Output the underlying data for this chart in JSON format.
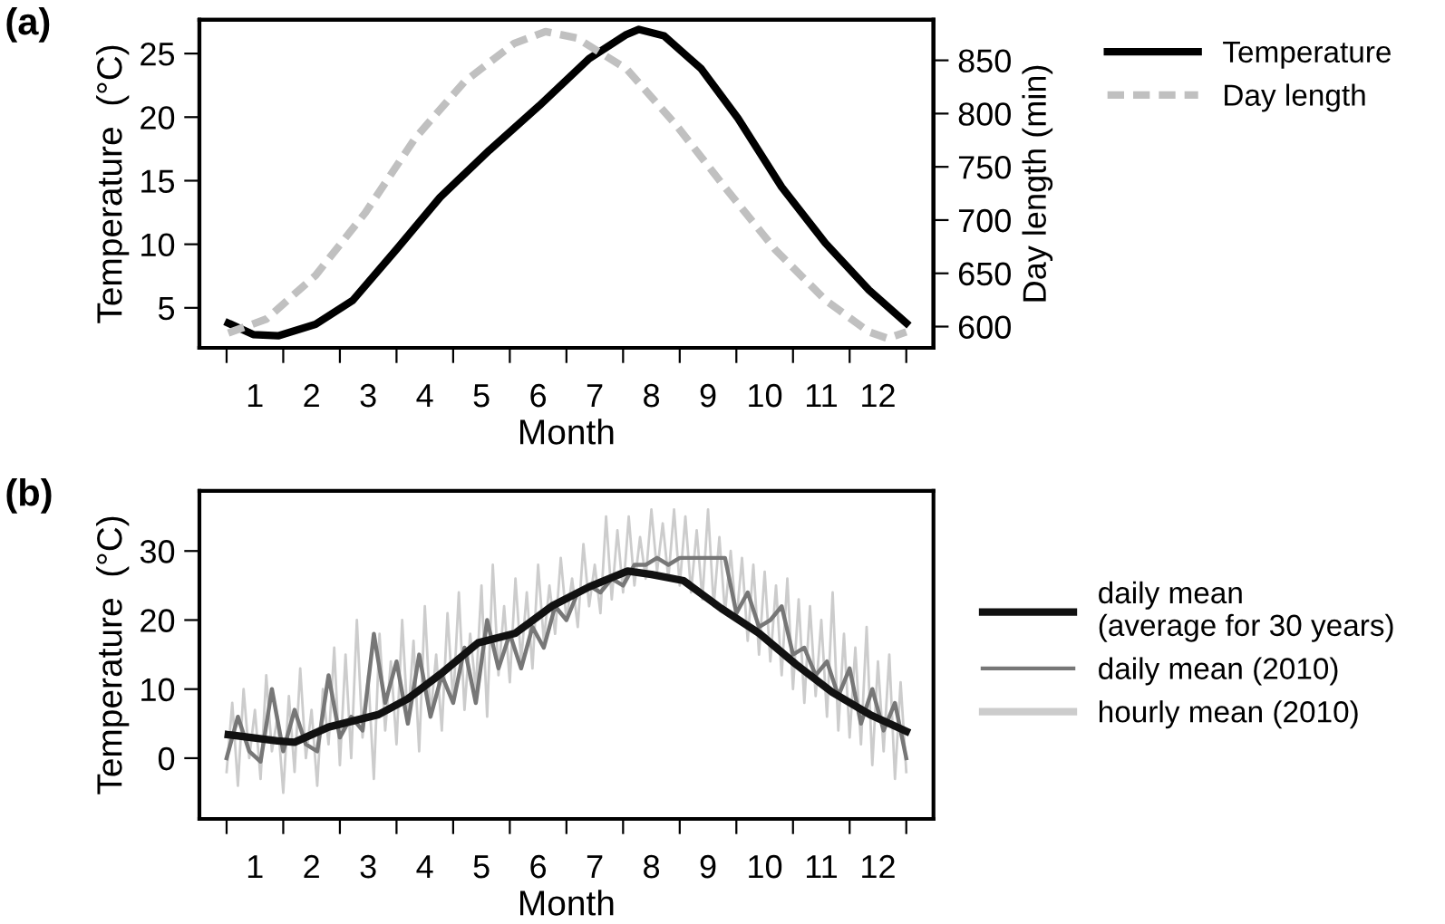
{
  "chart_data": [
    {
      "type": "line",
      "title": "(a)",
      "xlabel": "Month",
      "ylabel": "Temperature  (°C)",
      "y2label": "Day length (min)",
      "xlim": [
        -0.48,
        12.48
      ],
      "ylim": [
        1.85,
        27.65
      ],
      "yticks": [
        5,
        10,
        15,
        20,
        25
      ],
      "y2lim": [
        580,
        888
      ],
      "y2ticks": [
        600,
        650,
        700,
        750,
        800,
        850
      ],
      "xticks": [
        {
          "value": 0,
          "label": null
        },
        {
          "value": 1,
          "label": null
        },
        {
          "value": 2,
          "label": null
        },
        {
          "value": 3,
          "label": null
        },
        {
          "value": 4,
          "label": null
        },
        {
          "value": 5,
          "label": null
        },
        {
          "value": 6,
          "label": null
        },
        {
          "value": 7,
          "label": null
        },
        {
          "value": 8,
          "label": null
        },
        {
          "value": 9,
          "label": null
        },
        {
          "value": 10,
          "label": null
        },
        {
          "value": 11,
          "label": null
        },
        {
          "value": 12,
          "label": null
        },
        {
          "value": 0.5,
          "label": "1"
        },
        {
          "value": 1.5,
          "label": "2"
        },
        {
          "value": 2.5,
          "label": "3"
        },
        {
          "value": 3.5,
          "label": "4"
        },
        {
          "value": 4.5,
          "label": "5"
        },
        {
          "value": 5.5,
          "label": "6"
        },
        {
          "value": 6.5,
          "label": "7"
        },
        {
          "value": 7.5,
          "label": "8"
        },
        {
          "value": 8.5,
          "label": "9"
        },
        {
          "value": 9.5,
          "label": "10"
        },
        {
          "value": 10.5,
          "label": "11"
        },
        {
          "value": 11.5,
          "label": "12"
        }
      ],
      "grid": false,
      "legend": "top right",
      "series": [
        {
          "name": "Temperature",
          "color": "#000000",
          "line_style": "solid",
          "x": [
            0.03,
            0.47,
            0.91,
            1.57,
            2.23,
            3.0,
            3.77,
            4.64,
            5.52,
            6.4,
            7.06,
            7.28,
            7.72,
            8.38,
            9.03,
            9.8,
            10.57,
            11.34,
            12.0
          ],
          "values": [
            3.8,
            2.9,
            2.8,
            3.7,
            5.6,
            9.6,
            13.7,
            17.4,
            20.9,
            24.6,
            26.5,
            26.9,
            26.4,
            23.8,
            19.9,
            14.5,
            10.1,
            6.4,
            3.8
          ]
        },
        {
          "name": "Day length",
          "color": "#c0c0c0",
          "line_style": "dashed",
          "axis": "y2",
          "x": [
            0.03,
            0.7,
            1.57,
            2.45,
            3.33,
            4.2,
            5.08,
            5.63,
            6.18,
            7.06,
            7.94,
            8.81,
            9.69,
            10.57,
            11.34,
            11.67,
            12.0
          ],
          "values": [
            594,
            607,
            648,
            707,
            777,
            830,
            866,
            877,
            871,
            842,
            789,
            730,
            672,
            625,
            595,
            589,
            595
          ]
        }
      ]
    },
    {
      "type": "line",
      "title": "(b)",
      "xlabel": "Month",
      "ylabel": "Temperature  (°C)",
      "xlim": [
        -0.48,
        12.48
      ],
      "ylim": [
        -8.8,
        38.7
      ],
      "yticks": [
        0,
        10,
        20,
        30
      ],
      "xticks": [
        {
          "value": 0,
          "label": null
        },
        {
          "value": 1,
          "label": null
        },
        {
          "value": 2,
          "label": null
        },
        {
          "value": 3,
          "label": null
        },
        {
          "value": 4,
          "label": null
        },
        {
          "value": 5,
          "label": null
        },
        {
          "value": 6,
          "label": null
        },
        {
          "value": 7,
          "label": null
        },
        {
          "value": 8,
          "label": null
        },
        {
          "value": 9,
          "label": null
        },
        {
          "value": 10,
          "label": null
        },
        {
          "value": 11,
          "label": null
        },
        {
          "value": 12,
          "label": null
        },
        {
          "value": 0.5,
          "label": "1"
        },
        {
          "value": 1.5,
          "label": "2"
        },
        {
          "value": 2.5,
          "label": "3"
        },
        {
          "value": 3.5,
          "label": "4"
        },
        {
          "value": 4.5,
          "label": "5"
        },
        {
          "value": 5.5,
          "label": "6"
        },
        {
          "value": 6.5,
          "label": "7"
        },
        {
          "value": 7.5,
          "label": "8"
        },
        {
          "value": 8.5,
          "label": "9"
        },
        {
          "value": 9.5,
          "label": "10"
        },
        {
          "value": 10.5,
          "label": "11"
        },
        {
          "value": 11.5,
          "label": "12"
        }
      ],
      "grid": false,
      "legend": "right",
      "series": [
        {
          "name": "hourly mean (2010)",
          "color": "#cccccc",
          "line_style": "solid",
          "x": [
            0.0,
            0.1,
            0.2,
            0.3,
            0.4,
            0.5,
            0.6,
            0.7,
            0.8,
            0.9,
            1.0,
            1.1,
            1.2,
            1.3,
            1.4,
            1.5,
            1.6,
            1.7,
            1.8,
            1.9,
            2.0,
            2.1,
            2.2,
            2.3,
            2.4,
            2.5,
            2.6,
            2.7,
            2.8,
            2.9,
            3.0,
            3.1,
            3.2,
            3.3,
            3.4,
            3.5,
            3.6,
            3.7,
            3.8,
            3.9,
            4.0,
            4.1,
            4.2,
            4.3,
            4.4,
            4.5,
            4.6,
            4.7,
            4.8,
            4.9,
            5.0,
            5.1,
            5.2,
            5.3,
            5.4,
            5.5,
            5.6,
            5.7,
            5.8,
            5.9,
            6.0,
            6.1,
            6.2,
            6.3,
            6.4,
            6.5,
            6.6,
            6.7,
            6.8,
            6.9,
            7.0,
            7.1,
            7.2,
            7.3,
            7.4,
            7.5,
            7.6,
            7.7,
            7.8,
            7.9,
            8.0,
            8.1,
            8.2,
            8.3,
            8.4,
            8.5,
            8.6,
            8.7,
            8.8,
            8.9,
            9.0,
            9.1,
            9.2,
            9.3,
            9.4,
            9.5,
            9.6,
            9.7,
            9.8,
            9.9,
            10.0,
            10.1,
            10.2,
            10.3,
            10.4,
            10.5,
            10.6,
            10.7,
            10.8,
            10.9,
            11.0,
            11.1,
            11.2,
            11.3,
            11.4,
            11.5,
            11.6,
            11.7,
            11.8,
            11.9,
            12.0
          ],
          "values": [
            -2,
            8,
            -4,
            10,
            0,
            7,
            -3,
            12,
            1,
            6,
            -5,
            9,
            -2,
            13,
            0,
            7,
            -4,
            10,
            2,
            16,
            -1,
            15,
            0,
            20,
            3,
            12,
            -3,
            18,
            4,
            14,
            2,
            20,
            5,
            17,
            1,
            22,
            6,
            15,
            4,
            21,
            8,
            24,
            7,
            18,
            10,
            25,
            6,
            28,
            12,
            22,
            11,
            26,
            14,
            24,
            13,
            28,
            17,
            25,
            18,
            29,
            20,
            26,
            19,
            31,
            22,
            28,
            21,
            35,
            23,
            33,
            24,
            35,
            25,
            32,
            26,
            36,
            27,
            34,
            26,
            36,
            25,
            35,
            24,
            33,
            23,
            36,
            22,
            32,
            21,
            30,
            20,
            29,
            17,
            28,
            15,
            27,
            14,
            25,
            12,
            26,
            10,
            23,
            8,
            22,
            9,
            20,
            6,
            24,
            4,
            18,
            3,
            16,
            2,
            19,
            -1,
            14,
            1,
            15,
            -3,
            11,
            -2
          ]
        },
        {
          "name": "daily mean (2010)",
          "color": "#777777",
          "line_style": "solid",
          "x": [
            0.0,
            0.2,
            0.4,
            0.6,
            0.8,
            1.0,
            1.2,
            1.4,
            1.6,
            1.8,
            2.0,
            2.2,
            2.4,
            2.6,
            2.8,
            3.0,
            3.2,
            3.4,
            3.6,
            3.8,
            4.0,
            4.2,
            4.4,
            4.6,
            4.8,
            5.0,
            5.2,
            5.4,
            5.6,
            5.8,
            6.0,
            6.2,
            6.4,
            6.6,
            6.8,
            7.0,
            7.2,
            7.4,
            7.6,
            7.8,
            8.0,
            8.2,
            8.4,
            8.6,
            8.8,
            9.0,
            9.2,
            9.4,
            9.6,
            9.8,
            10.0,
            10.2,
            10.4,
            10.6,
            10.8,
            11.0,
            11.2,
            11.4,
            11.6,
            11.8,
            12.0
          ],
          "values": [
            0,
            6,
            1,
            -0.5,
            10,
            1,
            7,
            2,
            1,
            12,
            3,
            6,
            4,
            18,
            8,
            14,
            5,
            15,
            6,
            12,
            8,
            16,
            8,
            20,
            13,
            18,
            13,
            19,
            16,
            22,
            20,
            24,
            25,
            24,
            26,
            25,
            28,
            28,
            29,
            28,
            29,
            29,
            29,
            29,
            29,
            21,
            24,
            19,
            20,
            22,
            15,
            16,
            12,
            14,
            9,
            13,
            5,
            10,
            4,
            8,
            0
          ]
        },
        {
          "name": "daily mean\n(average for 30 years)",
          "color": "#111111",
          "line_style": "solid",
          "x": [
            0.03,
            0.9,
            1.2,
            1.8,
            2.68,
            3.2,
            3.78,
            4.44,
            5.1,
            5.76,
            6.4,
            7.08,
            7.5,
            8.07,
            8.73,
            9.4,
            10.05,
            10.7,
            11.36,
            12.0
          ],
          "values": [
            3.4,
            2.5,
            2.3,
            4.5,
            6.3,
            8.6,
            12.2,
            16.7,
            18.1,
            22.1,
            24.8,
            27.1,
            26.6,
            25.7,
            21.7,
            18.1,
            13.6,
            9.5,
            6.3,
            3.9
          ]
        }
      ]
    }
  ]
}
